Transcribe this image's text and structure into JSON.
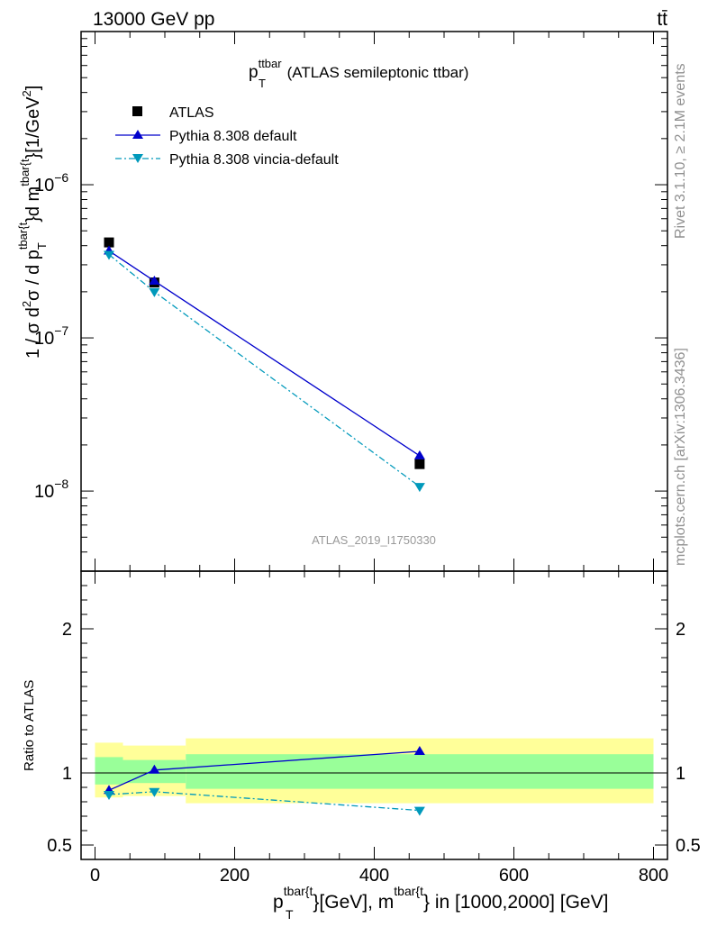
{
  "header": {
    "left": "13000 GeV pp",
    "right": "tt̄"
  },
  "side_labels": {
    "rivet": "Rivet 3.1.10, ≥ 2.1M events",
    "mcplots": "mcplots.cern.ch [arXiv:1306.3436]"
  },
  "chart_data": {
    "type": "scatter",
    "title_main": "p",
    "title_sub": "T",
    "title_sup": "ttbar",
    "title_rest": "(ATLAS semileptonic ttbar)",
    "watermark": "ATLAS_2019_I1750330",
    "y_axis": {
      "part1": "1 / σ d",
      "sup1": "2",
      "part2": "σ / d p",
      "sub2": "T",
      "sup2": "tbar{t",
      "part3": "}d m",
      "sup3": "tbar{t",
      "part4": "}[1/GeV",
      "sup4": "2",
      "part5": "]"
    },
    "x_axis": {
      "p": "p",
      "p_sub": "T",
      "p_sup": "tbar{t",
      "mid": "}[GeV], m",
      "m_sup": "tbar{t",
      "end": "} in [1000,2000] [GeV]"
    },
    "ratio_ylabel": "Ratio to ATLAS",
    "xlim": [
      -20,
      820
    ],
    "ylim_main": [
      3e-09,
      1e-05
    ],
    "ylim_ratio": [
      0.4,
      2.4
    ],
    "y_scale": "log",
    "legend_placement": "top-left",
    "x_ticks": [
      "0",
      "200",
      "400",
      "600",
      "800"
    ],
    "y_ticks_main": [
      {
        "value": 1e-06,
        "base": "10",
        "exp": "−6"
      },
      {
        "value": 1e-07,
        "base": "10",
        "exp": "−7"
      },
      {
        "value": 1e-08,
        "base": "10",
        "exp": "−8"
      }
    ],
    "y_ticks_ratio": [
      {
        "value": 0.5,
        "label": "0.5"
      },
      {
        "value": 1,
        "label": "1"
      },
      {
        "value": 2,
        "label": "2"
      }
    ],
    "bin_edges": [
      0,
      40,
      130,
      800
    ],
    "series": [
      {
        "name": "ATLAS",
        "marker": "square",
        "color": "#000000",
        "x": [
          20,
          85,
          465
        ],
        "y": [
          4.2e-07,
          2.3e-07,
          1.5e-08
        ]
      },
      {
        "name": "Pythia 8.308 default",
        "marker": "triangle-up",
        "line": "solid",
        "color": "#0000cc",
        "x": [
          20,
          85,
          465
        ],
        "y": [
          3.7e-07,
          2.35e-07,
          1.7e-08
        ],
        "ratio": [
          0.88,
          1.02,
          1.15
        ]
      },
      {
        "name": "Pythia 8.308 vincia-default",
        "marker": "triangle-down",
        "line": "dashdot",
        "color": "#0099bb",
        "x": [
          20,
          85,
          465
        ],
        "y": [
          3.5e-07,
          2e-07,
          1.07e-08
        ],
        "ratio": [
          0.85,
          0.87,
          0.74
        ]
      }
    ],
    "ratio_bands": {
      "inner_color": "#99ff99",
      "outer_color": "#ffff99",
      "inner_low": [
        0.92,
        0.93,
        0.89
      ],
      "inner_high": [
        1.11,
        1.09,
        1.13
      ],
      "outer_low": [
        0.83,
        0.84,
        0.79
      ],
      "outer_high": [
        1.21,
        1.19,
        1.24
      ]
    }
  }
}
